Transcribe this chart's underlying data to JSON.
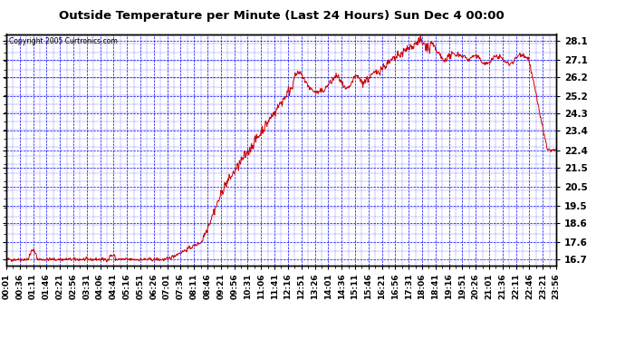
{
  "title": "Outside Temperature per Minute (Last 24 Hours) Sun Dec 4 00:00",
  "copyright": "Copyright 2005 Curtronics.com",
  "background_color": "#ffffff",
  "plot_bg_color": "#ffffff",
  "grid_color": "#0000ff",
  "line_color": "#cc0000",
  "yticks": [
    16.7,
    17.6,
    18.6,
    19.5,
    20.5,
    21.5,
    22.4,
    23.4,
    24.3,
    25.2,
    26.2,
    27.1,
    28.1
  ],
  "ylim": [
    16.4,
    28.45
  ],
  "xtick_labels": [
    "00:01",
    "00:36",
    "01:11",
    "01:46",
    "02:21",
    "02:56",
    "03:31",
    "04:06",
    "04:41",
    "05:16",
    "05:51",
    "06:26",
    "07:01",
    "07:36",
    "08:11",
    "08:46",
    "09:21",
    "09:56",
    "10:31",
    "11:06",
    "11:41",
    "12:16",
    "12:51",
    "13:26",
    "14:01",
    "14:36",
    "15:11",
    "15:46",
    "16:21",
    "16:56",
    "17:31",
    "18:06",
    "18:41",
    "19:16",
    "19:51",
    "20:26",
    "21:01",
    "21:36",
    "22:11",
    "22:46",
    "23:21",
    "23:56"
  ],
  "n_points": 1440,
  "seed": 42
}
